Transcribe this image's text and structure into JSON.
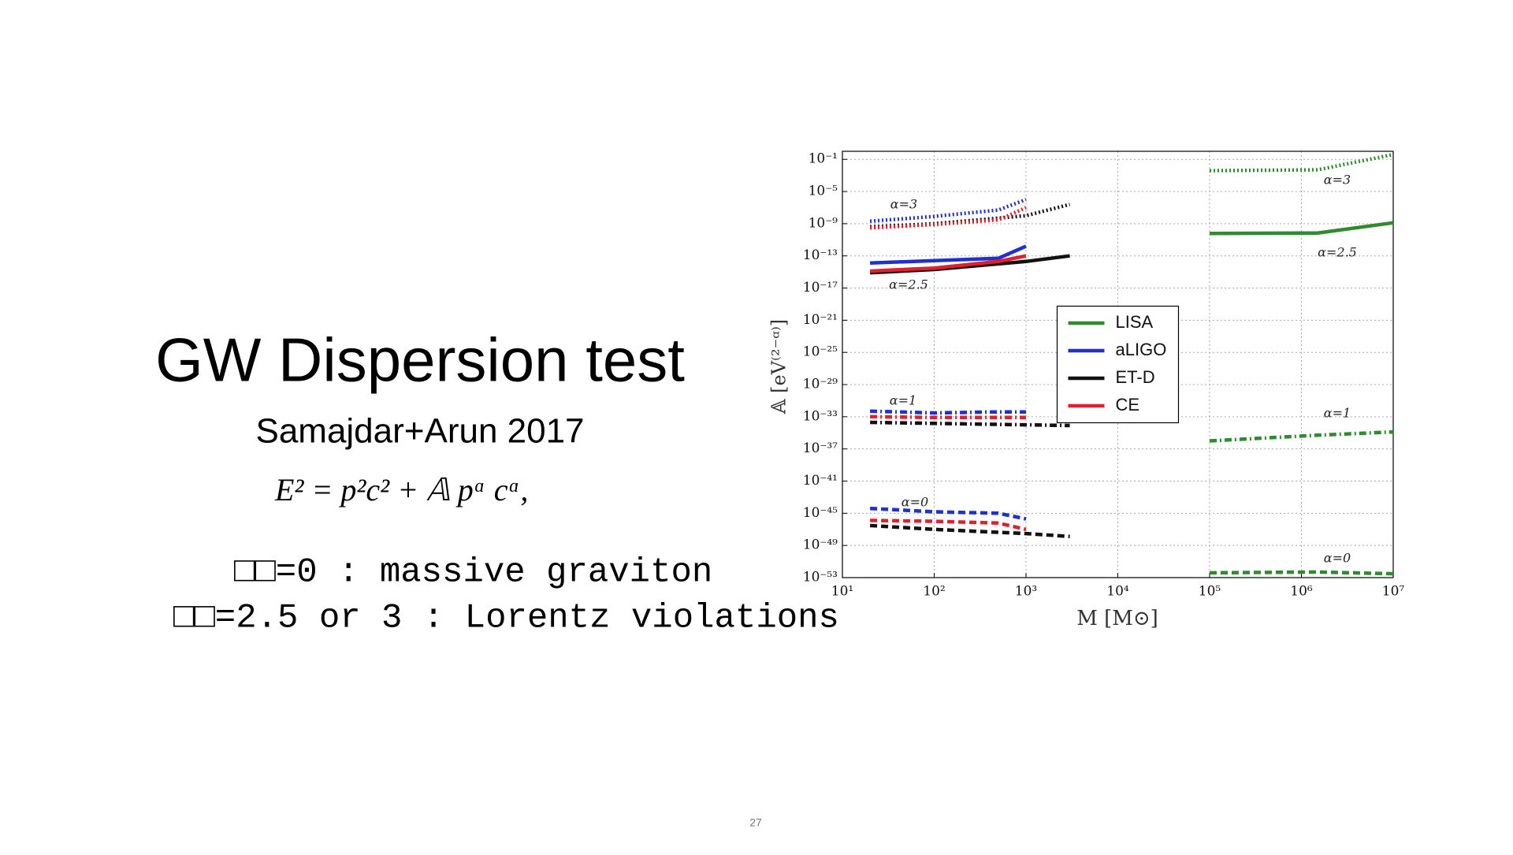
{
  "slide": {
    "title": "GW Dispersion test",
    "subtitle": "Samajdar+Arun 2017",
    "equation": "E² = p²c² + 𝔸 pᵅ cᵅ,",
    "bullets": [
      "□□=0 : massive graviton",
      "□□=2.5 or 3 : Lorentz violations"
    ],
    "page_number": "27"
  },
  "chart_data": {
    "type": "line",
    "xlabel": "M [M⊙]",
    "ylabel": "𝔸 [eV⁽²⁻ᵅ⁾]",
    "log_x": true,
    "log_y": true,
    "grid": true,
    "legend": "center",
    "xlim": [
      10,
      10000000
    ],
    "ylim": [
      1e-53,
      1
    ],
    "xticks": [
      {
        "value": 10,
        "label": "10¹"
      },
      {
        "value": 100,
        "label": "10²"
      },
      {
        "value": 1000,
        "label": "10³"
      },
      {
        "value": 10000,
        "label": "10⁴"
      },
      {
        "value": 100000,
        "label": "10⁵"
      },
      {
        "value": 1000000,
        "label": "10⁶"
      },
      {
        "value": 10000000,
        "label": "10⁷"
      }
    ],
    "yticks": [
      {
        "value": 1e-53,
        "label": "10⁻⁵³"
      },
      {
        "value": 1e-49,
        "label": "10⁻⁴⁹"
      },
      {
        "value": 1e-45,
        "label": "10⁻⁴⁵"
      },
      {
        "value": 1e-41,
        "label": "10⁻⁴¹"
      },
      {
        "value": 1e-37,
        "label": "10⁻³⁷"
      },
      {
        "value": 1e-33,
        "label": "10⁻³³"
      },
      {
        "value": 1e-29,
        "label": "10⁻²⁹"
      },
      {
        "value": 1e-25,
        "label": "10⁻²⁵"
      },
      {
        "value": 1e-21,
        "label": "10⁻²¹"
      },
      {
        "value": 1e-17,
        "label": "10⁻¹⁷"
      },
      {
        "value": 1e-13,
        "label": "10⁻¹³"
      },
      {
        "value": 1e-09,
        "label": "10⁻⁹"
      },
      {
        "value": 1e-05,
        "label": "10⁻⁵"
      },
      {
        "value": 0.1,
        "label": "10⁻¹"
      }
    ],
    "annotations": [
      "α=3",
      "α=2.5",
      "α=1",
      "α=0",
      "α=3",
      "α=2.5",
      "α=1",
      "α=0"
    ],
    "series": [
      {
        "name": "LISA",
        "color": "#2e8b2e",
        "curves": [
          {
            "style": "dotted",
            "x": [
              100000,
              1500000,
              10000000
            ],
            "values": [
              0.004,
              0.005,
              0.4
            ]
          },
          {
            "style": "solid",
            "x": [
              100000,
              1500000,
              10000000
            ],
            "values": [
              6e-11,
              7e-11,
              1.3e-09
            ]
          },
          {
            "style": "dashdot",
            "x": [
              100000,
              1500000,
              10000000
            ],
            "values": [
              1e-36,
              5e-36,
              1.3e-35
            ]
          },
          {
            "style": "dashed",
            "x": [
              100000,
              1500000,
              10000000
            ],
            "values": [
              4e-53,
              5e-53,
              3e-53
            ]
          }
        ]
      },
      {
        "name": "aLIGO",
        "color": "#1f2fd0",
        "curves": [
          {
            "style": "dotted",
            "x": [
              20,
              100,
              500,
              1000
            ],
            "values": [
              2e-09,
              8e-09,
              5e-08,
              1e-06
            ]
          },
          {
            "style": "solid",
            "x": [
              20,
              100,
              500,
              1000
            ],
            "values": [
              1.3e-14,
              2.5e-14,
              5e-14,
              1.6e-12
            ]
          },
          {
            "style": "dashdot",
            "x": [
              20,
              100,
              500,
              1000
            ],
            "values": [
              5e-33,
              3e-33,
              4e-33,
              4e-33
            ]
          },
          {
            "style": "dashed",
            "x": [
              20,
              100,
              500,
              1000
            ],
            "values": [
              4e-45,
              1.5e-45,
              1e-45,
              2e-46
            ]
          }
        ]
      },
      {
        "name": "ET-D",
        "color": "#111111",
        "curves": [
          {
            "style": "dotted",
            "x": [
              20,
              100,
              1000,
              3000
            ],
            "values": [
              4e-10,
              1e-09,
              1e-08,
              2.5e-07
            ]
          },
          {
            "style": "solid",
            "x": [
              20,
              100,
              1000,
              3000
            ],
            "values": [
              8e-16,
              2e-15,
              2e-14,
              1e-13
            ]
          },
          {
            "style": "dashdot",
            "x": [
              20,
              100,
              1000,
              3000
            ],
            "values": [
              2e-34,
              1.5e-34,
              1e-34,
              8e-35
            ]
          },
          {
            "style": "dashed",
            "x": [
              20,
              100,
              1000,
              3000
            ],
            "values": [
              3e-47,
              1e-47,
              3e-48,
              1.3e-48
            ]
          }
        ]
      },
      {
        "name": "CE",
        "color": "#e0202a",
        "curves": [
          {
            "style": "dotted",
            "x": [
              20,
              100,
              500,
              1000
            ],
            "values": [
              3e-10,
              8e-10,
              3e-09,
              1e-07
            ]
          },
          {
            "style": "solid",
            "x": [
              20,
              100,
              500,
              1000
            ],
            "values": [
              1.3e-15,
              3e-15,
              2e-14,
              1e-13
            ]
          },
          {
            "style": "dashdot",
            "x": [
              20,
              100,
              500,
              1000
            ],
            "values": [
              1e-33,
              8e-34,
              8e-34,
              8e-34
            ]
          },
          {
            "style": "dashed",
            "x": [
              20,
              100,
              500,
              1000
            ],
            "values": [
              1.3e-46,
              1e-46,
              6e-47,
              1e-47
            ]
          }
        ]
      }
    ]
  }
}
